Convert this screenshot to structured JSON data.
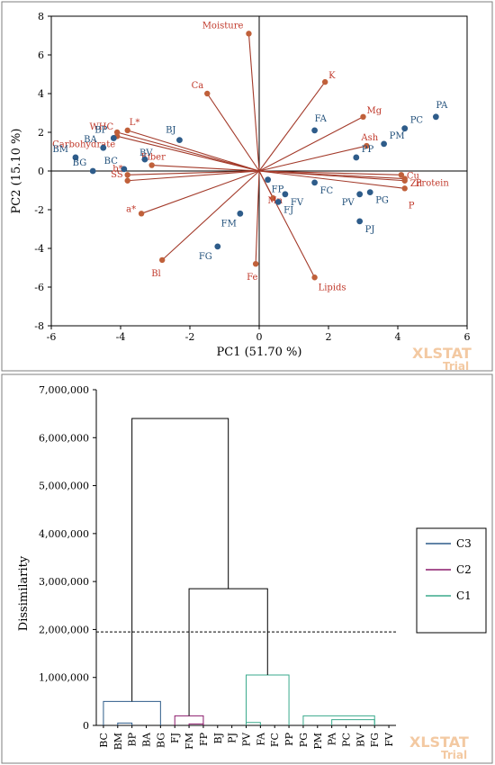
{
  "chart_data": [
    {
      "type": "scatter",
      "subtype": "pca-biplot",
      "xlabel": "PC1 (51.70 %)",
      "ylabel": "PC2 (15.10 %)",
      "xlim": [
        -6,
        6
      ],
      "ylim": [
        -8,
        8
      ],
      "xticks": [
        -6,
        -4,
        -2,
        0,
        2,
        4,
        6
      ],
      "yticks": [
        -8,
        -6,
        -4,
        -2,
        0,
        2,
        4,
        6,
        8
      ],
      "tick_labels_x": [
        "-6",
        "-4",
        "-2",
        "0",
        "2",
        "4",
        "6"
      ],
      "tick_labels_y": [
        "-8",
        "-6",
        "-4",
        "-2",
        "0",
        "2",
        "4",
        "6",
        "8"
      ],
      "grid": false,
      "colors": {
        "scores": "#2e5c8a",
        "loadings": "#c0392b",
        "vectors": "#a33a2a"
      },
      "scores": [
        {
          "name": "PA",
          "x": 5.1,
          "y": 2.8
        },
        {
          "name": "PC",
          "x": 4.2,
          "y": 2.2
        },
        {
          "name": "PM",
          "x": 3.6,
          "y": 1.4
        },
        {
          "name": "PP",
          "x": 2.8,
          "y": 0.7
        },
        {
          "name": "FA",
          "x": 1.6,
          "y": 2.1
        },
        {
          "name": "FC",
          "x": 1.6,
          "y": -0.6
        },
        {
          "name": "PV",
          "x": 2.9,
          "y": -1.2
        },
        {
          "name": "PG",
          "x": 3.2,
          "y": -1.1
        },
        {
          "name": "PJ",
          "x": 2.9,
          "y": -2.6
        },
        {
          "name": "FP",
          "x": 0.25,
          "y": -0.45
        },
        {
          "name": "FV",
          "x": 0.75,
          "y": -1.2
        },
        {
          "name": "FJ",
          "x": 0.55,
          "y": -1.6
        },
        {
          "name": "FM",
          "x": -0.55,
          "y": -2.2
        },
        {
          "name": "FG",
          "x": -1.2,
          "y": -3.9
        },
        {
          "name": "BJ",
          "x": -2.3,
          "y": 1.6
        },
        {
          "name": "BV",
          "x": -3.3,
          "y": 0.6
        },
        {
          "name": "BC",
          "x": -3.9,
          "y": 0.1
        },
        {
          "name": "BP",
          "x": -4.2,
          "y": 1.7
        },
        {
          "name": "BA",
          "x": -4.5,
          "y": 1.2
        },
        {
          "name": "BM",
          "x": -5.3,
          "y": 0.7
        },
        {
          "name": "BG",
          "x": -4.8,
          "y": 0.0
        }
      ],
      "loadings": [
        {
          "name": "Moisture",
          "x": -0.3,
          "y": 7.1
        },
        {
          "name": "K",
          "x": 1.9,
          "y": 4.6
        },
        {
          "name": "Ca",
          "x": -1.5,
          "y": 4.0
        },
        {
          "name": "Mg",
          "x": 3.0,
          "y": 2.8
        },
        {
          "name": "Ash",
          "x": 3.1,
          "y": 1.3
        },
        {
          "name": "WHC",
          "x": -4.1,
          "y": 2.0
        },
        {
          "name": "L*",
          "x": -3.8,
          "y": 2.1
        },
        {
          "name": "Carbohydrate",
          "x": -4.1,
          "y": 1.8
        },
        {
          "name": "Fiber",
          "x": -3.1,
          "y": 0.3
        },
        {
          "name": "b*",
          "x": -3.8,
          "y": -0.2
        },
        {
          "name": "SS",
          "x": -3.8,
          "y": -0.5
        },
        {
          "name": "a*",
          "x": -3.4,
          "y": -2.2
        },
        {
          "name": "Bl",
          "x": -2.8,
          "y": -4.6
        },
        {
          "name": "Fe",
          "x": -0.1,
          "y": -4.8
        },
        {
          "name": "Lipids",
          "x": 1.6,
          "y": -5.5
        },
        {
          "name": "Mn",
          "x": 0.4,
          "y": -1.4
        },
        {
          "name": "Cu",
          "x": 4.1,
          "y": -0.2
        },
        {
          "name": "Zn",
          "x": 4.2,
          "y": -0.5
        },
        {
          "name": "Protein",
          "x": 4.2,
          "y": -0.4
        },
        {
          "name": "P",
          "x": 4.2,
          "y": -0.9
        }
      ],
      "watermark": {
        "brand": "XLSTAT",
        "edition": "Trial"
      }
    },
    {
      "type": "dendrogram",
      "ylabel": "Dissimilarity",
      "ylim": [
        0,
        7000000
      ],
      "yticks": [
        0,
        1000000,
        2000000,
        3000000,
        4000000,
        5000000,
        6000000,
        7000000
      ],
      "tick_labels_y": [
        "0",
        "1,000,000",
        "2,000,000",
        "3,000,000",
        "4,000,000",
        "5,000,000",
        "6,000,000",
        "7,000,000"
      ],
      "leaves": [
        "BC",
        "BM",
        "BP",
        "BA",
        "BG",
        "FJ",
        "FM",
        "FP",
        "BJ",
        "PJ",
        "PV",
        "FA",
        "FC",
        "PP",
        "PG",
        "PM",
        "PA",
        "PC",
        "BV",
        "FG",
        "FV"
      ],
      "cutoff": 1950000,
      "clusters": [
        {
          "name": "C3",
          "color": "#2e5c8a"
        },
        {
          "name": "C2",
          "color": "#8b1a6b"
        },
        {
          "name": "C1",
          "color": "#3aaa8c"
        }
      ],
      "merges": [
        {
          "left": [
            0,
            4
          ],
          "height": 500000,
          "cluster": "C3"
        },
        {
          "left": [
            1,
            2
          ],
          "height": 50000,
          "cluster": "C3"
        },
        {
          "left": [
            5,
            7
          ],
          "height": 200000,
          "cluster": "C2"
        },
        {
          "left": [
            6,
            7
          ],
          "height": 30000,
          "cluster": "C2"
        },
        {
          "left": [
            10,
            13
          ],
          "height": 1050000,
          "cluster": "C1"
        },
        {
          "left": [
            14,
            19
          ],
          "height": 200000,
          "cluster": "C1"
        },
        {
          "left": [
            10,
            11
          ],
          "height": 60000,
          "cluster": "C1"
        },
        {
          "left": [
            16,
            19
          ],
          "height": 120000,
          "cluster": "C1"
        }
      ],
      "top_links": {
        "left_root": 6400000,
        "right_root": 2850000
      },
      "watermark": {
        "brand": "XLSTAT",
        "edition": "Trial"
      }
    }
  ]
}
